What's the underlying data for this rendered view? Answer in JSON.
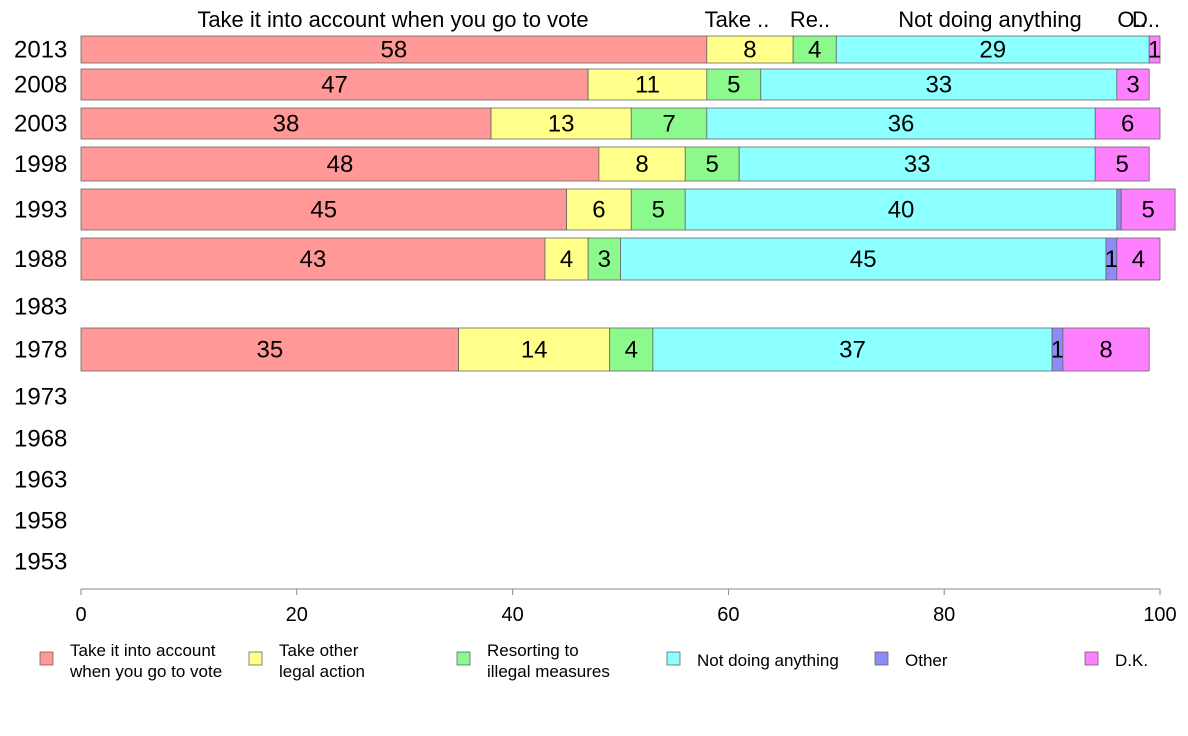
{
  "chart_data": {
    "type": "bar",
    "orientation": "horizontal",
    "stacked": true,
    "title": "",
    "xlabel": "",
    "ylabel": "",
    "xlim": [
      0,
      100
    ],
    "x_ticks": [
      "0",
      "20",
      "40",
      "60",
      "80",
      "100"
    ],
    "categories": [
      "2013",
      "2008",
      "2003",
      "1998",
      "1993",
      "1988",
      "1983",
      "1978",
      "1973",
      "1968",
      "1963",
      "1958",
      "1953"
    ],
    "top_labels": [
      "Take it into account when you go to vote",
      "Take ..",
      "Re..",
      "Not doing anything",
      "O..",
      "D.."
    ],
    "series": [
      {
        "name": "Take it into account when you go to vote",
        "legend_lines": [
          "Take it into account",
          "when you go to vote"
        ],
        "color": "#ff9896",
        "values": [
          58,
          47,
          38,
          48,
          45,
          43,
          null,
          35,
          null,
          null,
          null,
          null,
          null
        ]
      },
      {
        "name": "Take other legal action",
        "legend_lines": [
          "Take other",
          "legal action"
        ],
        "color": "#ffff8a",
        "values": [
          8,
          11,
          13,
          8,
          6,
          4,
          null,
          14,
          null,
          null,
          null,
          null,
          null
        ]
      },
      {
        "name": "Resorting to illegal measures",
        "legend_lines": [
          "Resorting to",
          "illegal measures"
        ],
        "color": "#8cf98c",
        "values": [
          4,
          5,
          7,
          5,
          5,
          3,
          null,
          4,
          null,
          null,
          null,
          null,
          null
        ]
      },
      {
        "name": "Not doing anything",
        "legend_lines": [
          "Not doing anything"
        ],
        "color": "#8cffff",
        "values": [
          29,
          33,
          36,
          33,
          40,
          45,
          null,
          37,
          null,
          null,
          null,
          null,
          null
        ]
      },
      {
        "name": "Other",
        "legend_lines": [
          "Other"
        ],
        "color": "#8c8cf9",
        "values": [
          0,
          0,
          0,
          0,
          0.4,
          1,
          null,
          1,
          null,
          null,
          null,
          null,
          null
        ]
      },
      {
        "name": "D.K.",
        "legend_lines": [
          "D.K."
        ],
        "color": "#ff80ff",
        "values": [
          1,
          3,
          6,
          5,
          5,
          4,
          null,
          8,
          null,
          null,
          null,
          null,
          null
        ]
      }
    ],
    "segment_labels": [
      [
        "58",
        "8",
        "4",
        "29",
        "",
        "1"
      ],
      [
        "47",
        "11",
        "5",
        "33",
        "",
        "3"
      ],
      [
        "38",
        "13",
        "7",
        "36",
        "",
        "6"
      ],
      [
        "48",
        "8",
        "5",
        "33",
        "",
        "5"
      ],
      [
        "45",
        "6",
        "5",
        "40",
        "",
        "5"
      ],
      [
        "43",
        "4",
        "3",
        "45",
        "1",
        "4"
      ],
      [],
      [
        "35",
        "14",
        "4",
        "37",
        "1",
        "8"
      ],
      [],
      [],
      [],
      [],
      []
    ],
    "grid": false,
    "legend_position": "bottom"
  }
}
